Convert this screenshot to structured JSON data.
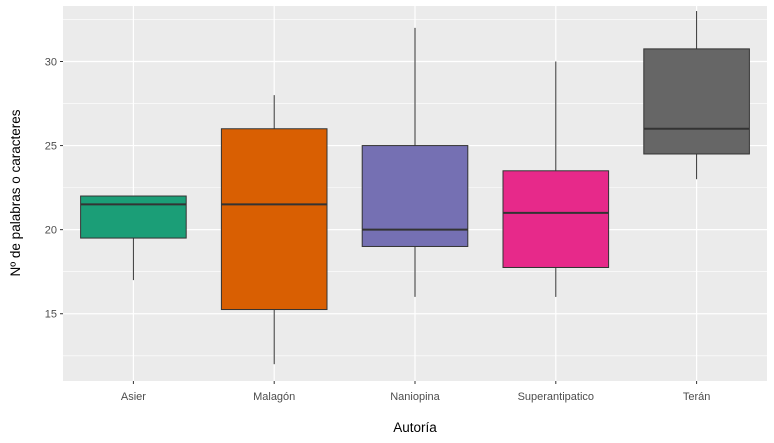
{
  "chart_data": {
    "type": "boxplot",
    "title": "",
    "xlabel": "Autoría",
    "ylabel": "Nº de palabras o caracteres",
    "categories": [
      "Asier",
      "Malagón",
      "Naniopina",
      "Superantipatico",
      "Terán"
    ],
    "ylim": [
      11,
      33.3
    ],
    "y_ticks": [
      15,
      20,
      25,
      30
    ],
    "grid": true,
    "legend": "none",
    "boxes": [
      {
        "category": "Asier",
        "min": 17,
        "q1": 19.5,
        "median": 21.5,
        "q3": 22,
        "max": 22,
        "color": "#1b9e77"
      },
      {
        "category": "Malagón",
        "min": 12,
        "q1": 15.25,
        "median": 21.5,
        "q3": 26,
        "max": 28,
        "color": "#d95f02"
      },
      {
        "category": "Naniopina",
        "min": 16,
        "q1": 19,
        "median": 20,
        "q3": 25,
        "max": 32,
        "color": "#7570b3"
      },
      {
        "category": "Superantipatico",
        "min": 16,
        "q1": 17.75,
        "median": 21,
        "q3": 23.5,
        "max": 30,
        "color": "#e7298a"
      },
      {
        "category": "Terán",
        "min": 23,
        "q1": 24.5,
        "median": 26,
        "q3": 30.75,
        "max": 33,
        "color": "#666666"
      }
    ]
  }
}
